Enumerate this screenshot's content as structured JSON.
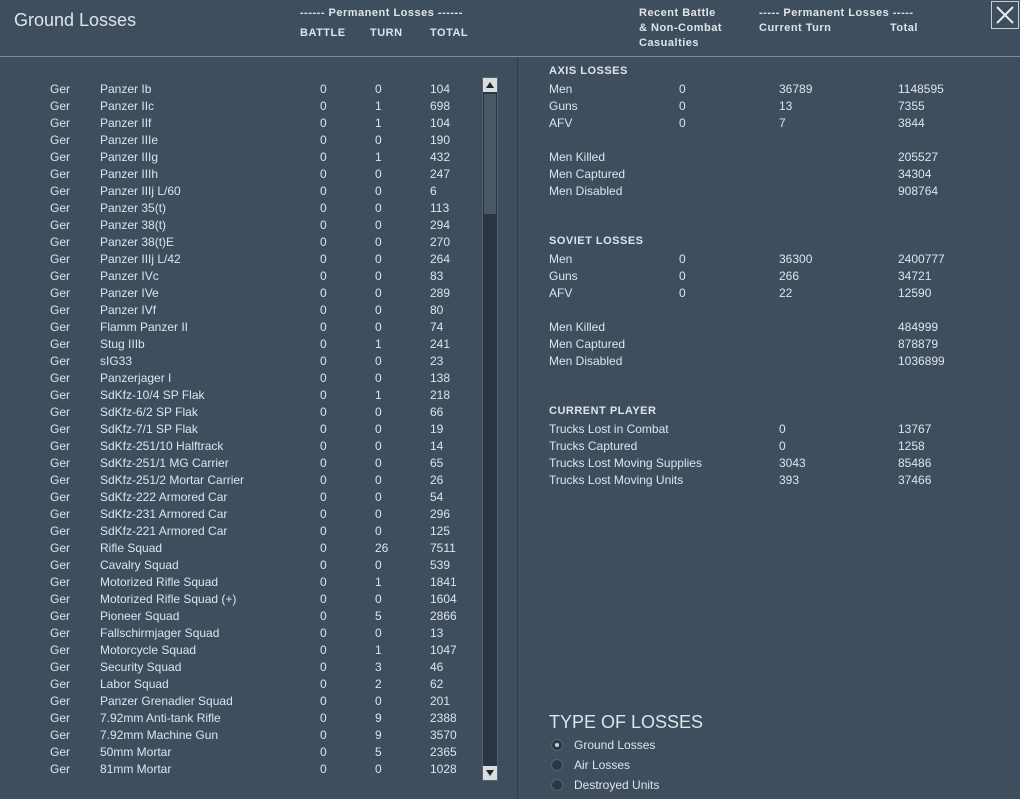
{
  "header": {
    "title": "Ground Losses",
    "left_group": "------ Permanent Losses ------",
    "left_columns": [
      "BATTLE",
      "TURN",
      "TOTAL"
    ],
    "right_recent": [
      "Recent Battle",
      "& Non-Combat",
      "Casualties"
    ],
    "right_group": "----- Permanent Losses -----",
    "right_columns": [
      "Current Turn",
      "Total"
    ]
  },
  "units": [
    [
      "Ger",
      "Panzer Ib",
      0,
      0,
      104
    ],
    [
      "Ger",
      "Panzer IIc",
      0,
      1,
      698
    ],
    [
      "Ger",
      "Panzer IIf",
      0,
      1,
      104
    ],
    [
      "Ger",
      "Panzer IIIe",
      0,
      0,
      190
    ],
    [
      "Ger",
      "Panzer IIIg",
      0,
      1,
      432
    ],
    [
      "Ger",
      "Panzer IIIh",
      0,
      0,
      247
    ],
    [
      "Ger",
      "Panzer IIIj L/60",
      0,
      0,
      6
    ],
    [
      "Ger",
      "Panzer 35(t)",
      0,
      0,
      113
    ],
    [
      "Ger",
      "Panzer 38(t)",
      0,
      0,
      294
    ],
    [
      "Ger",
      "Panzer 38(t)E",
      0,
      0,
      270
    ],
    [
      "Ger",
      "Panzer IIIj L/42",
      0,
      0,
      264
    ],
    [
      "Ger",
      "Panzer IVc",
      0,
      0,
      83
    ],
    [
      "Ger",
      "Panzer IVe",
      0,
      0,
      289
    ],
    [
      "Ger",
      "Panzer IVf",
      0,
      0,
      80
    ],
    [
      "Ger",
      "Flamm Panzer II",
      0,
      0,
      74
    ],
    [
      "Ger",
      "Stug IIIb",
      0,
      1,
      241
    ],
    [
      "Ger",
      "sIG33",
      0,
      0,
      23
    ],
    [
      "Ger",
      "Panzerjager I",
      0,
      0,
      138
    ],
    [
      "Ger",
      "SdKfz-10/4 SP Flak",
      0,
      1,
      218
    ],
    [
      "Ger",
      "SdKfz-6/2 SP Flak",
      0,
      0,
      66
    ],
    [
      "Ger",
      "SdKfz-7/1 SP Flak",
      0,
      0,
      19
    ],
    [
      "Ger",
      "SdKfz-251/10 Halftrack",
      0,
      0,
      14
    ],
    [
      "Ger",
      "SdKfz-251/1 MG Carrier",
      0,
      0,
      65
    ],
    [
      "Ger",
      "SdKfz-251/2 Mortar Carrier",
      0,
      0,
      26
    ],
    [
      "Ger",
      "SdKfz-222 Armored Car",
      0,
      0,
      54
    ],
    [
      "Ger",
      "SdKfz-231 Armored Car",
      0,
      0,
      296
    ],
    [
      "Ger",
      "SdKfz-221 Armored Car",
      0,
      0,
      125
    ],
    [
      "Ger",
      "Rifle Squad",
      0,
      26,
      7511
    ],
    [
      "Ger",
      "Cavalry Squad",
      0,
      0,
      539
    ],
    [
      "Ger",
      "Motorized Rifle Squad",
      0,
      1,
      1841
    ],
    [
      "Ger",
      "Motorized Rifle Squad (+)",
      0,
      0,
      1604
    ],
    [
      "Ger",
      "Pioneer Squad",
      0,
      5,
      2866
    ],
    [
      "Ger",
      "Fallschirmjager Squad",
      0,
      0,
      13
    ],
    [
      "Ger",
      "Motorcycle Squad",
      0,
      1,
      1047
    ],
    [
      "Ger",
      "Security Squad",
      0,
      3,
      46
    ],
    [
      "Ger",
      "Labor Squad",
      0,
      2,
      62
    ],
    [
      "Ger",
      "Panzer Grenadier Squad",
      0,
      0,
      201
    ],
    [
      "Ger",
      "7.92mm Anti-tank Rifle",
      0,
      9,
      2388
    ],
    [
      "Ger",
      "7.92mm Machine Gun",
      0,
      9,
      3570
    ],
    [
      "Ger",
      "50mm Mortar",
      0,
      5,
      2365
    ],
    [
      "Ger",
      "81mm Mortar",
      0,
      0,
      1028
    ]
  ],
  "sections": [
    {
      "title": "AXIS LOSSES",
      "rows": [
        [
          "Men",
          0,
          36789,
          1148595
        ],
        [
          "Guns",
          0,
          13,
          7355
        ],
        [
          "AFV",
          0,
          7,
          3844
        ]
      ],
      "summary": [
        [
          "Men Killed",
          205527
        ],
        [
          "Men Captured",
          34304
        ],
        [
          "Men Disabled",
          908764
        ]
      ]
    },
    {
      "title": "SOVIET LOSSES",
      "rows": [
        [
          "Men",
          0,
          36300,
          2400777
        ],
        [
          "Guns",
          0,
          266,
          34721
        ],
        [
          "AFV",
          0,
          22,
          12590
        ]
      ],
      "summary": [
        [
          "Men Killed",
          484999
        ],
        [
          "Men Captured",
          878879
        ],
        [
          "Men Disabled",
          1036899
        ]
      ]
    },
    {
      "title": "CURRENT PLAYER",
      "trucks": [
        [
          "Trucks Lost in Combat",
          0,
          13767
        ],
        [
          "Trucks Captured",
          0,
          1258
        ],
        [
          "Trucks Lost Moving Supplies",
          3043,
          85486
        ],
        [
          "Trucks Lost Moving Units",
          393,
          37466
        ]
      ]
    }
  ],
  "loss_types": {
    "title": "TYPE OF LOSSES",
    "options": [
      "Ground Losses",
      "Air Losses",
      "Destroyed Units"
    ],
    "selected": 0
  }
}
